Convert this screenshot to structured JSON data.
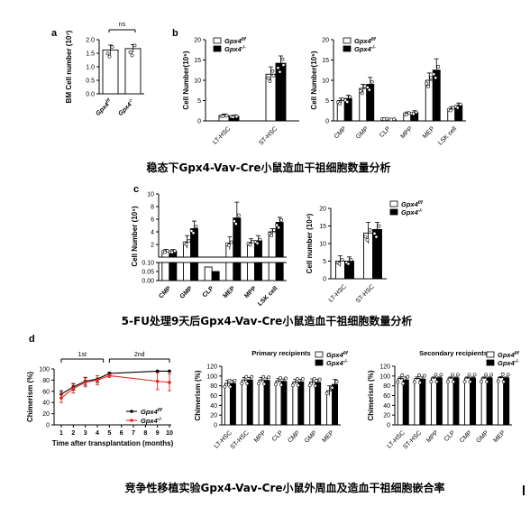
{
  "captions": {
    "row1": "稳态下Gpx4-Vav-Cre小鼠造血干祖细胞数量分析",
    "row2": "5-FU处理9天后Gpx4-Vav-Cre小鼠造血干祖细胞数量分析",
    "row3": "竞争性移植实验Gpx4-Vav-Cre小鼠外周血及造血干祖细胞嵌合率"
  },
  "panel_letters": [
    "a",
    "b",
    "c",
    "d"
  ],
  "legend": {
    "ff": "Gpx4f/f",
    "ko": "Gpx4-/-"
  },
  "colors": {
    "ff": "#ffffff",
    "ko": "#000000",
    "ko_line": "#e8261d",
    "ff_line": "#000000"
  },
  "chart_data": [
    {
      "id": "a",
      "type": "bar",
      "ylabel": "BM Cell number (10⁷)",
      "ylim": [
        0,
        2.0
      ],
      "yticks": [
        "0.0",
        "0.5",
        "1.0",
        "1.5",
        "2.0"
      ],
      "categories": [
        "Gpx4f/f",
        "Gpx4-/-"
      ],
      "values": [
        1.62,
        1.67
      ],
      "errors": [
        0.18,
        0.15
      ],
      "annotation": "ns"
    },
    {
      "id": "b1",
      "type": "bar",
      "ylabel": "Cell Number(10⁵)",
      "ylim": [
        0,
        20
      ],
      "yticks": [
        "0",
        "5",
        "10",
        "15",
        "20"
      ],
      "categories": [
        "LT-HSC",
        "ST-HSC"
      ],
      "series": [
        {
          "name": "Gpx4f/f",
          "values": [
            1.3,
            11.5
          ],
          "errors": [
            0.4,
            1.8
          ]
        },
        {
          "name": "Gpx4-/-",
          "values": [
            1.1,
            14.2
          ],
          "errors": [
            0.3,
            1.8
          ]
        }
      ]
    },
    {
      "id": "b2",
      "type": "bar",
      "ylabel": "Cell Number(10⁵)",
      "ylim": [
        0,
        20
      ],
      "yticks": [
        "0",
        "5",
        "10",
        "15",
        "20"
      ],
      "categories": [
        "CMP",
        "GMP",
        "CLP",
        "MPP",
        "MEP",
        "LSK cell"
      ],
      "series": [
        {
          "name": "Gpx4f/f",
          "values": [
            5.0,
            8.0,
            0.5,
            1.8,
            10.0,
            3.0
          ],
          "errors": [
            0.6,
            1.0,
            0.2,
            0.4,
            1.8,
            0.5
          ]
        },
        {
          "name": "Gpx4-/-",
          "values": [
            5.5,
            9.0,
            0.4,
            2.0,
            12.5,
            3.8
          ],
          "errors": [
            0.8,
            1.7,
            0.2,
            0.5,
            2.8,
            0.6
          ]
        }
      ]
    },
    {
      "id": "c1",
      "type": "bar",
      "ylabel": "Cell Number (10⁵)",
      "yticks_top": [
        "10",
        "8",
        "6",
        "4",
        "2"
      ],
      "yticks_bottom": [
        "0.10",
        "0.05",
        "0.00"
      ],
      "categories": [
        "CMP",
        "GMP",
        "CLP",
        "MEP",
        "MPP",
        "LSK cell"
      ],
      "series": [
        {
          "name": "Gpx4f/f",
          "values": [
            0.9,
            2.4,
            0.03,
            2.2,
            2.3,
            4.0
          ],
          "errors": [
            0.3,
            1.0,
            0.01,
            1.0,
            0.6,
            0.5
          ]
        },
        {
          "name": "Gpx4-/-",
          "values": [
            0.9,
            4.5,
            0.02,
            6.2,
            2.6,
            5.5
          ],
          "errors": [
            0.3,
            1.2,
            0.01,
            2.5,
            0.8,
            0.8
          ]
        }
      ]
    },
    {
      "id": "c2",
      "type": "bar",
      "ylabel": "Cell number (10⁴)",
      "ylim": [
        0,
        20
      ],
      "yticks": [
        "0",
        "5",
        "10",
        "15",
        "20"
      ],
      "categories": [
        "LT-HSC",
        "ST-HSC"
      ],
      "series": [
        {
          "name": "Gpx4f/f",
          "values": [
            5.0,
            13.0
          ],
          "errors": [
            1.5,
            3.0
          ]
        },
        {
          "name": "Gpx4-/-",
          "values": [
            5.0,
            14.0
          ],
          "errors": [
            1.2,
            2.0
          ]
        }
      ]
    },
    {
      "id": "d1",
      "type": "line",
      "ylabel": "Chimerism (%)",
      "xlabel": "Time after transplantation (months)",
      "ylim": [
        0,
        100
      ],
      "yticks": [
        "0",
        "20",
        "40",
        "60",
        "80",
        "100"
      ],
      "x": [
        1,
        2,
        3,
        4,
        5,
        9,
        10
      ],
      "xticks": [
        "1",
        "2",
        "3",
        "4",
        "5",
        "6",
        "7",
        "8",
        "9",
        "10"
      ],
      "phases": [
        "1st",
        "2nd"
      ],
      "series": [
        {
          "name": "Gpx4f/f",
          "values": [
            55,
            68,
            78,
            82,
            92,
            96,
            96
          ],
          "errors": [
            6,
            6,
            7,
            6,
            2,
            0,
            0
          ]
        },
        {
          "name": "Gpx4-/-",
          "values": [
            48,
            65,
            76,
            80,
            88,
            78,
            76
          ],
          "errors": [
            8,
            8,
            8,
            8,
            3,
            15,
            15
          ]
        }
      ]
    },
    {
      "id": "d2",
      "type": "bar",
      "title": "Primary recipients",
      "ylabel": "Chimerism (%)",
      "ylim": [
        0,
        120
      ],
      "yticks": [
        "0",
        "20",
        "40",
        "60",
        "80",
        "100",
        "120"
      ],
      "categories": [
        "LT-HSC",
        "ST-HSC",
        "MPP",
        "CLP",
        "CMP",
        "GMP",
        "MEP"
      ],
      "series": [
        {
          "name": "Gpx4f/f",
          "values": [
            85,
            92,
            92,
            90,
            88,
            88,
            70
          ],
          "errors": [
            6,
            5,
            5,
            5,
            5,
            6,
            10
          ]
        },
        {
          "name": "Gpx4-/-",
          "values": [
            85,
            92,
            91,
            89,
            88,
            87,
            83
          ],
          "errors": [
            6,
            5,
            5,
            5,
            5,
            6,
            10
          ]
        }
      ]
    },
    {
      "id": "d3",
      "type": "bar",
      "title": "Secondary recipients",
      "ylabel": "Chimerism (%)",
      "ylim": [
        0,
        120
      ],
      "yticks": [
        "0",
        "20",
        "40",
        "60",
        "80",
        "100",
        "120"
      ],
      "categories": [
        "LT-HSC",
        "ST-HSC",
        "MPP",
        "CLP",
        "CMP",
        "GMP",
        "MEP"
      ],
      "series": [
        {
          "name": "Gpx4f/f",
          "values": [
            95,
            95,
            96,
            96,
            96,
            96,
            97
          ],
          "errors": [
            3,
            3,
            2,
            2,
            2,
            2,
            2
          ]
        },
        {
          "name": "Gpx4-/-",
          "values": [
            92,
            94,
            96,
            96,
            96,
            96,
            96
          ],
          "errors": [
            6,
            4,
            2,
            2,
            2,
            2,
            2
          ]
        }
      ]
    }
  ]
}
